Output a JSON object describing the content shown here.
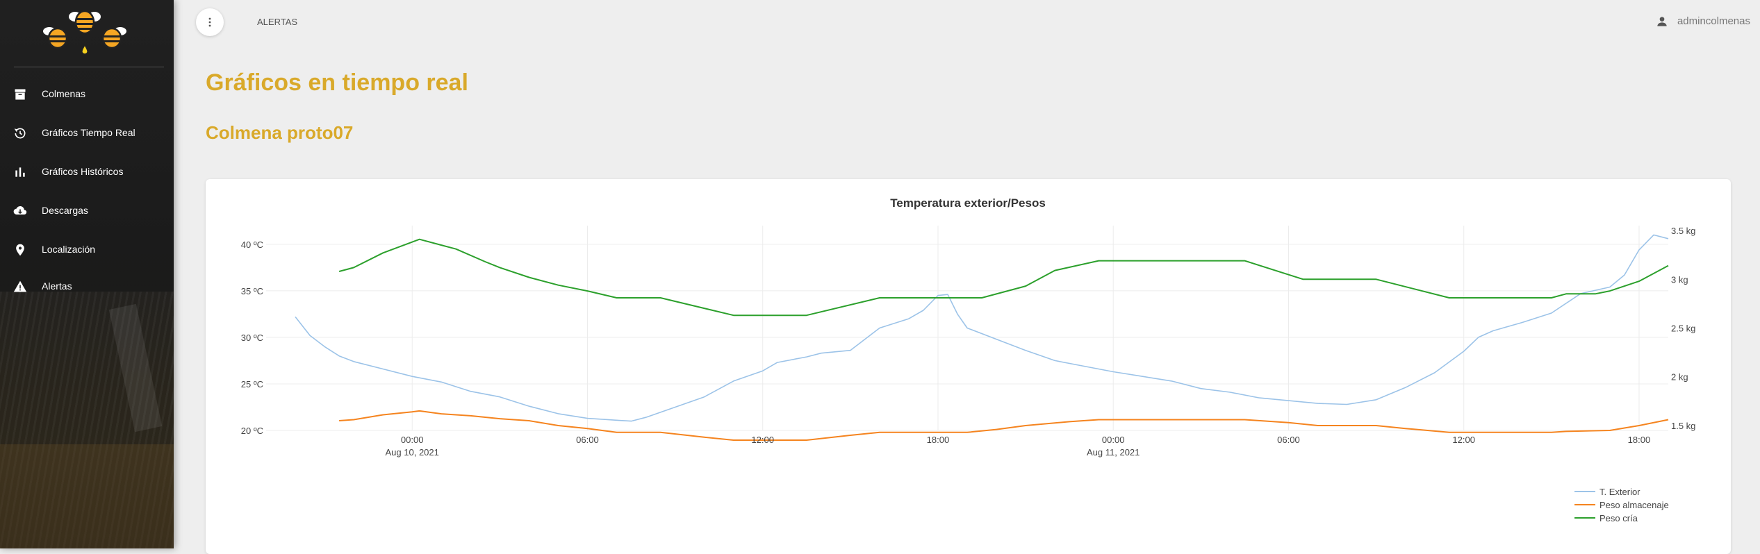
{
  "sidebar": {
    "items": [
      {
        "label": "Colmenas",
        "icon": "archive-icon"
      },
      {
        "label": "Gráficos Tiempo Real",
        "icon": "history-icon"
      },
      {
        "label": "Gráficos Históricos",
        "icon": "bar-chart-icon"
      },
      {
        "label": "Descargas",
        "icon": "cloud-download-icon"
      },
      {
        "label": "Localización",
        "icon": "location-pin-icon"
      },
      {
        "label": "Alertas",
        "icon": "warning-icon"
      }
    ]
  },
  "topbar": {
    "breadcrumb": "ALERTAS",
    "username": "admincolmenas"
  },
  "main": {
    "title": "Gráficos en tiempo real",
    "subtitle": "Colmena proto07"
  },
  "colors": {
    "accent": "#d9a92a",
    "t_exterior": "#9cc3e8",
    "peso_almacenaje": "#f5841f",
    "peso_cria": "#2ca02c"
  },
  "chart_data": {
    "type": "line",
    "title": "Temperatura exterior/Pesos",
    "x_range": [
      "2021-08-09 19:00",
      "2021-08-11 19:00"
    ],
    "x_ticks": [
      {
        "time": "2021-08-10 00:00",
        "label": "00:00",
        "sublabel": "Aug 10, 2021"
      },
      {
        "time": "2021-08-10 06:00",
        "label": "06:00",
        "sublabel": ""
      },
      {
        "time": "2021-08-10 12:00",
        "label": "12:00",
        "sublabel": ""
      },
      {
        "time": "2021-08-10 18:00",
        "label": "18:00",
        "sublabel": ""
      },
      {
        "time": "2021-08-11 00:00",
        "label": "00:00",
        "sublabel": "Aug 11, 2021"
      },
      {
        "time": "2021-08-11 06:00",
        "label": "06:00",
        "sublabel": ""
      },
      {
        "time": "2021-08-11 12:00",
        "label": "12:00",
        "sublabel": ""
      },
      {
        "time": "2021-08-11 18:00",
        "label": "18:00",
        "sublabel": ""
      }
    ],
    "y_left": {
      "range": [
        20,
        42
      ],
      "ticks": [
        20,
        25,
        30,
        35,
        40
      ],
      "tick_labels": [
        "20 ºC",
        "25 ºC",
        "30 ºC",
        "35 ºC",
        "40 ºC"
      ]
    },
    "y_right": {
      "range": [
        1.45,
        3.55
      ],
      "ticks": [
        1.5,
        2,
        2.5,
        3,
        3.5
      ],
      "tick_labels": [
        "1.5 kg",
        "2 kg",
        "2.5 kg",
        "3 kg",
        "3.5 kg"
      ]
    },
    "grid": true,
    "legend_position": "bottom-right",
    "series": [
      {
        "name": "T. Exterior",
        "axis": "left",
        "points": [
          [
            "2021-08-09 20:00",
            32.2
          ],
          [
            "2021-08-09 20:30",
            30.2
          ],
          [
            "2021-08-09 21:00",
            29.0
          ],
          [
            "2021-08-09 21:30",
            28.0
          ],
          [
            "2021-08-09 22:00",
            27.4
          ],
          [
            "2021-08-09 23:00",
            26.6
          ],
          [
            "2021-08-10 00:00",
            25.8
          ],
          [
            "2021-08-10 01:00",
            25.2
          ],
          [
            "2021-08-10 02:00",
            24.2
          ],
          [
            "2021-08-10 03:00",
            23.6
          ],
          [
            "2021-08-10 04:00",
            22.6
          ],
          [
            "2021-08-10 05:00",
            21.8
          ],
          [
            "2021-08-10 06:00",
            21.3
          ],
          [
            "2021-08-10 07:00",
            21.1
          ],
          [
            "2021-08-10 07:30",
            21.0
          ],
          [
            "2021-08-10 08:00",
            21.4
          ],
          [
            "2021-08-10 09:00",
            22.5
          ],
          [
            "2021-08-10 10:00",
            23.6
          ],
          [
            "2021-08-10 11:00",
            25.3
          ],
          [
            "2021-08-10 12:00",
            26.4
          ],
          [
            "2021-08-10 12:30",
            27.3
          ],
          [
            "2021-08-10 13:30",
            27.9
          ],
          [
            "2021-08-10 14:00",
            28.3
          ],
          [
            "2021-08-10 15:00",
            28.6
          ],
          [
            "2021-08-10 16:00",
            31.0
          ],
          [
            "2021-08-10 17:00",
            32.0
          ],
          [
            "2021-08-10 17:30",
            32.9
          ],
          [
            "2021-08-10 18:00",
            34.5
          ],
          [
            "2021-08-10 18:20",
            34.6
          ],
          [
            "2021-08-10 18:40",
            32.5
          ],
          [
            "2021-08-10 19:00",
            31.0
          ],
          [
            "2021-08-10 20:00",
            29.8
          ],
          [
            "2021-08-10 21:00",
            28.6
          ],
          [
            "2021-08-10 22:00",
            27.5
          ],
          [
            "2021-08-10 23:00",
            26.9
          ],
          [
            "2021-08-11 00:00",
            26.3
          ],
          [
            "2021-08-11 01:00",
            25.8
          ],
          [
            "2021-08-11 02:00",
            25.3
          ],
          [
            "2021-08-11 03:00",
            24.5
          ],
          [
            "2021-08-11 04:00",
            24.1
          ],
          [
            "2021-08-11 05:00",
            23.5
          ],
          [
            "2021-08-11 06:00",
            23.2
          ],
          [
            "2021-08-11 07:00",
            22.9
          ],
          [
            "2021-08-11 08:00",
            22.8
          ],
          [
            "2021-08-11 09:00",
            23.3
          ],
          [
            "2021-08-11 10:00",
            24.6
          ],
          [
            "2021-08-11 11:00",
            26.2
          ],
          [
            "2021-08-11 12:00",
            28.5
          ],
          [
            "2021-08-11 12:30",
            30.0
          ],
          [
            "2021-08-11 13:00",
            30.7
          ],
          [
            "2021-08-11 14:00",
            31.6
          ],
          [
            "2021-08-11 15:00",
            32.6
          ],
          [
            "2021-08-11 16:00",
            34.7
          ],
          [
            "2021-08-11 17:00",
            35.4
          ],
          [
            "2021-08-11 17:30",
            36.7
          ],
          [
            "2021-08-11 18:00",
            39.4
          ],
          [
            "2021-08-11 18:30",
            41.0
          ],
          [
            "2021-08-11 19:00",
            40.6
          ]
        ]
      },
      {
        "name": "Peso almacenaje",
        "axis": "right",
        "points": [
          [
            "2021-08-09 21:30",
            1.55
          ],
          [
            "2021-08-09 22:00",
            1.56
          ],
          [
            "2021-08-09 23:00",
            1.61
          ],
          [
            "2021-08-10 00:00",
            1.64
          ],
          [
            "2021-08-10 00:15",
            1.65
          ],
          [
            "2021-08-10 01:00",
            1.62
          ],
          [
            "2021-08-10 02:00",
            1.6
          ],
          [
            "2021-08-10 03:00",
            1.57
          ],
          [
            "2021-08-10 04:00",
            1.55
          ],
          [
            "2021-08-10 05:00",
            1.5
          ],
          [
            "2021-08-10 06:00",
            1.47
          ],
          [
            "2021-08-10 07:00",
            1.43
          ],
          [
            "2021-08-10 08:30",
            1.43
          ],
          [
            "2021-08-10 10:00",
            1.38
          ],
          [
            "2021-08-10 11:00",
            1.35
          ],
          [
            "2021-08-10 13:30",
            1.35
          ],
          [
            "2021-08-10 15:00",
            1.4
          ],
          [
            "2021-08-10 16:00",
            1.43
          ],
          [
            "2021-08-10 19:00",
            1.43
          ],
          [
            "2021-08-10 20:00",
            1.46
          ],
          [
            "2021-08-10 21:00",
            1.5
          ],
          [
            "2021-08-10 22:30",
            1.54
          ],
          [
            "2021-08-10 23:30",
            1.56
          ],
          [
            "2021-08-11 04:30",
            1.56
          ],
          [
            "2021-08-11 06:00",
            1.53
          ],
          [
            "2021-08-11 07:00",
            1.5
          ],
          [
            "2021-08-11 09:00",
            1.5
          ],
          [
            "2021-08-11 10:00",
            1.47
          ],
          [
            "2021-08-11 11:30",
            1.43
          ],
          [
            "2021-08-11 15:00",
            1.43
          ],
          [
            "2021-08-11 15:30",
            1.44
          ],
          [
            "2021-08-11 17:00",
            1.45
          ],
          [
            "2021-08-11 18:00",
            1.5
          ],
          [
            "2021-08-11 19:00",
            1.56
          ]
        ]
      },
      {
        "name": "Peso cría",
        "axis": "right",
        "points": [
          [
            "2021-08-09 21:30",
            3.08
          ],
          [
            "2021-08-09 22:00",
            3.12
          ],
          [
            "2021-08-09 23:00",
            3.27
          ],
          [
            "2021-08-10 00:15",
            3.41
          ],
          [
            "2021-08-10 01:30",
            3.31
          ],
          [
            "2021-08-10 02:30",
            3.18
          ],
          [
            "2021-08-10 03:00",
            3.12
          ],
          [
            "2021-08-10 04:00",
            3.02
          ],
          [
            "2021-08-10 05:00",
            2.94
          ],
          [
            "2021-08-10 06:00",
            2.88
          ],
          [
            "2021-08-10 07:00",
            2.81
          ],
          [
            "2021-08-10 08:30",
            2.81
          ],
          [
            "2021-08-10 11:00",
            2.63
          ],
          [
            "2021-08-10 13:30",
            2.63
          ],
          [
            "2021-08-10 16:00",
            2.81
          ],
          [
            "2021-08-10 19:30",
            2.81
          ],
          [
            "2021-08-10 21:00",
            2.93
          ],
          [
            "2021-08-10 22:00",
            3.09
          ],
          [
            "2021-08-10 23:30",
            3.19
          ],
          [
            "2021-08-11 04:30",
            3.19
          ],
          [
            "2021-08-11 06:30",
            3.0
          ],
          [
            "2021-08-11 09:00",
            3.0
          ],
          [
            "2021-08-11 11:30",
            2.81
          ],
          [
            "2021-08-11 15:00",
            2.81
          ],
          [
            "2021-08-11 15:30",
            2.85
          ],
          [
            "2021-08-11 16:30",
            2.85
          ],
          [
            "2021-08-11 17:00",
            2.88
          ],
          [
            "2021-08-11 18:00",
            2.98
          ],
          [
            "2021-08-11 19:00",
            3.14
          ]
        ]
      }
    ]
  }
}
